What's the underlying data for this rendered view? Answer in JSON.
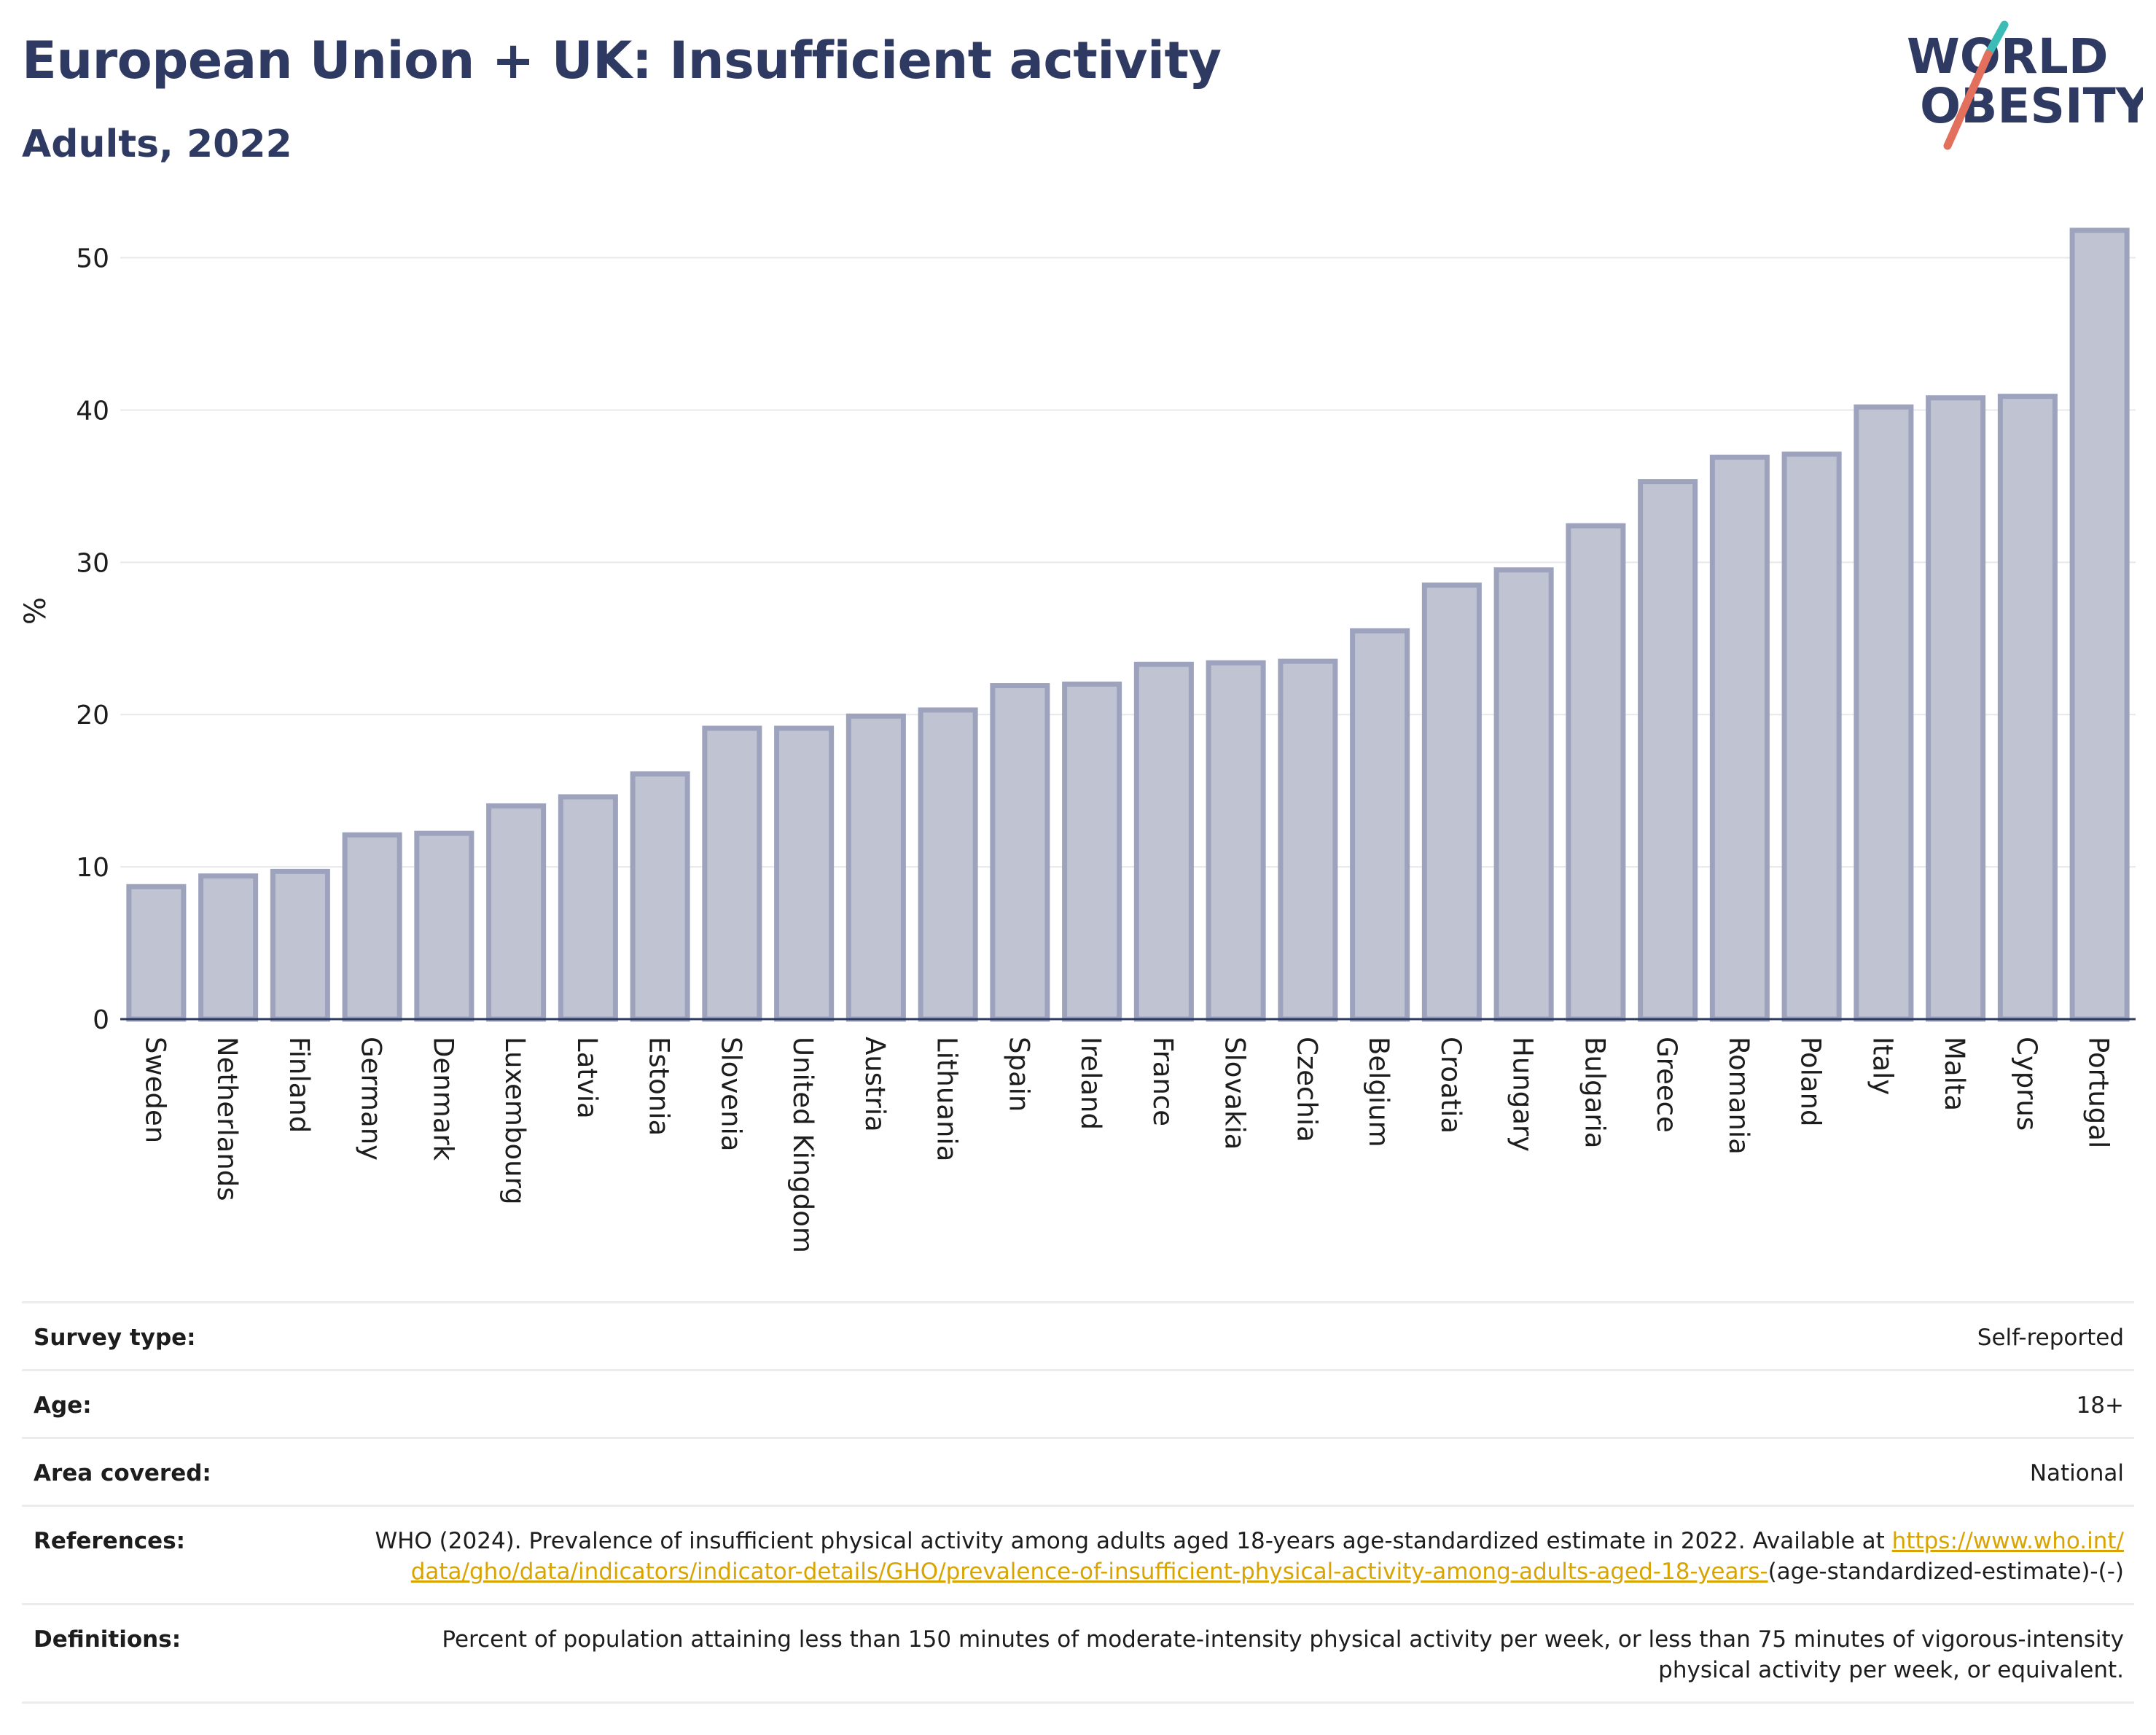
{
  "header": {
    "title": "European Union + UK: Insufficient activity",
    "subtitle": "Adults, 2022"
  },
  "logo": {
    "line1": "WORLD",
    "line2": "OBESITY",
    "accent_colors": [
      "#3bbcb6",
      "#e3705c"
    ],
    "text_color": "#2f3a63"
  },
  "chart_data": {
    "type": "bar",
    "ylabel": "%",
    "ylim": [
      0,
      54
    ],
    "yticks": [
      0,
      10,
      20,
      30,
      40,
      50
    ],
    "grid": true,
    "bar_fill": "#c0c3d1",
    "bar_stroke": "#9ea3bd",
    "categories": [
      "Sweden",
      "Netherlands",
      "Finland",
      "Germany",
      "Denmark",
      "Luxembourg",
      "Latvia",
      "Estonia",
      "Slovenia",
      "United Kingdom",
      "Austria",
      "Lithuania",
      "Spain",
      "Ireland",
      "France",
      "Slovakia",
      "Czechia",
      "Belgium",
      "Croatia",
      "Hungary",
      "Bulgaria",
      "Greece",
      "Romania",
      "Poland",
      "Italy",
      "Malta",
      "Cyprus",
      "Portugal"
    ],
    "values": [
      8.7,
      9.4,
      9.7,
      12.1,
      12.2,
      14.0,
      14.6,
      16.1,
      19.1,
      19.1,
      19.9,
      20.3,
      21.9,
      22.0,
      23.3,
      23.4,
      23.5,
      25.5,
      28.5,
      29.5,
      32.4,
      35.3,
      36.9,
      37.1,
      40.2,
      40.8,
      40.9,
      51.8
    ]
  },
  "info": {
    "survey_type_label": "Survey type:",
    "survey_type_value": "Self-reported",
    "age_label": "Age:",
    "age_value": "18+",
    "area_label": "Area covered:",
    "area_value": "National",
    "references_label": "References:",
    "references_text": "WHO (2024). Prevalence of insufficient physical activity among adults aged 18-years age-standardized estimate in 2022. Available at",
    "references_link": "https://www.who.int/data/gho/data/indicators/indicator-details/GHO/prevalence-of-insufficient-physical-activity-among-adults-aged-18-years-",
    "references_suffix": "(age-standardized-estimate)-(-)",
    "definitions_label": "Definitions:",
    "definitions_text": "Percent of population attaining less than 150 minutes of moderate-intensity physical activity per week, or less than 75 minutes of vigorous-intensity physical activity per week, or equivalent."
  }
}
